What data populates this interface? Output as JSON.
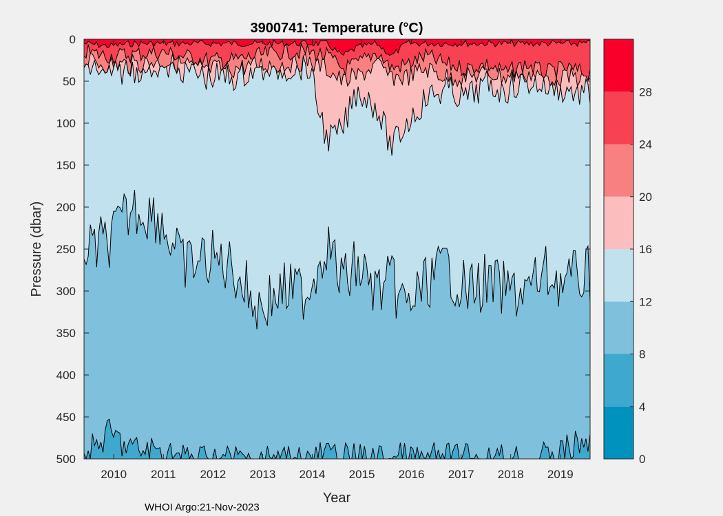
{
  "chart_data": {
    "type": "heatmap",
    "subtype": "filled-contour",
    "title": "3900741:  Temperature (°C)",
    "xlabel": "Year",
    "ylabel": "Pressure (dbar)",
    "xlim": [
      2009.4,
      2019.6
    ],
    "ylim": [
      0,
      500
    ],
    "y_reversed": true,
    "x_ticks": [
      2010,
      2011,
      2012,
      2013,
      2014,
      2015,
      2016,
      2017,
      2018,
      2019
    ],
    "y_ticks": [
      0,
      50,
      100,
      150,
      200,
      250,
      300,
      350,
      400,
      450,
      500
    ],
    "colorbar": {
      "ticks": [
        0,
        4,
        8,
        12,
        16,
        20,
        24,
        28
      ],
      "levels": [
        {
          "range": [
            0,
            4
          ],
          "color": "#0092be"
        },
        {
          "range": [
            4,
            8
          ],
          "color": "#3fa8cf"
        },
        {
          "range": [
            8,
            12
          ],
          "color": "#7fc0dc"
        },
        {
          "range": [
            12,
            16
          ],
          "color": "#c1e1ee"
        },
        {
          "range": [
            16,
            20
          ],
          "color": "#fbbdbd"
        },
        {
          "range": [
            20,
            24
          ],
          "color": "#f98080"
        },
        {
          "range": [
            24,
            28
          ],
          "color": "#f84152"
        },
        {
          "range": [
            28,
            32
          ],
          "color": "#f8002a"
        }
      ]
    },
    "contour_depths_approx": {
      "description": "approximate depth (dbar) of isotherms at sampled years",
      "x": [
        2009.4,
        2009.9,
        2010.4,
        2010.9,
        2011.4,
        2011.9,
        2012.4,
        2012.9,
        2013.4,
        2013.9,
        2014.3,
        2014.6,
        2014.9,
        2015.3,
        2015.6,
        2015.9,
        2016.3,
        2016.7,
        2017.1,
        2017.5,
        2017.9,
        2018.3,
        2018.7,
        2019.1,
        2019.5
      ],
      "iso28": [
        5,
        8,
        5,
        5,
        5,
        5,
        5,
        5,
        5,
        5,
        5,
        20,
        10,
        5,
        20,
        5,
        5,
        5,
        5,
        5,
        5,
        5,
        5,
        5,
        5
      ],
      "iso24": [
        15,
        20,
        18,
        15,
        20,
        25,
        25,
        20,
        15,
        15,
        20,
        35,
        30,
        15,
        35,
        30,
        20,
        30,
        35,
        30,
        40,
        30,
        40,
        35,
        40
      ],
      "iso20": [
        25,
        30,
        30,
        25,
        30,
        35,
        35,
        30,
        30,
        25,
        35,
        50,
        45,
        30,
        45,
        45,
        35,
        45,
        45,
        40,
        45,
        40,
        45,
        45,
        45
      ],
      "iso16": [
        30,
        40,
        35,
        30,
        35,
        45,
        45,
        35,
        35,
        30,
        120,
        110,
        60,
        80,
        130,
        100,
        70,
        60,
        70,
        55,
        60,
        50,
        55,
        60,
        65
      ],
      "iso12": [
        255,
        240,
        200,
        210,
        270,
        260,
        270,
        320,
        300,
        300,
        240,
        290,
        270,
        300,
        290,
        320,
        290,
        270,
        300,
        290,
        300,
        300,
        280,
        290,
        280
      ],
      "iso8": [
        500,
        470,
        490,
        490,
        500,
        500,
        500,
        500,
        500,
        500,
        495,
        500,
        500,
        500,
        500,
        500,
        500,
        500,
        500,
        500,
        500,
        500,
        500,
        490,
        480
      ]
    }
  },
  "footer": {
    "text": "WHOI Argo:21-Nov-2023"
  }
}
